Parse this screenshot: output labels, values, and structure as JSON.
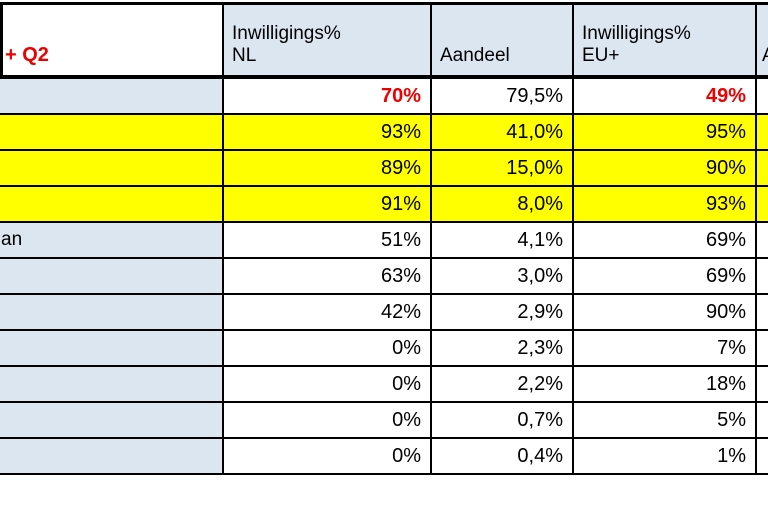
{
  "table": {
    "headers": {
      "period_fragment": "+ Q2",
      "col_nl_line1": "Inwilligings%",
      "col_nl_line2": "NL",
      "col_aandeel": "Aandeel",
      "col_eu_line1": "Inwilligings%",
      "col_eu_line2": "EU+",
      "col_partial_fragment": "A"
    },
    "rows": [
      {
        "label": "",
        "inwilligings_nl": "70%",
        "aandeel": "79,5%",
        "inwilligings_eu": "49%",
        "highlighted": false,
        "red_values": true
      },
      {
        "label": "",
        "inwilligings_nl": "93%",
        "aandeel": "41,0%",
        "inwilligings_eu": "95%",
        "highlighted": true,
        "red_values": false
      },
      {
        "label": "",
        "inwilligings_nl": "89%",
        "aandeel": "15,0%",
        "inwilligings_eu": "90%",
        "highlighted": true,
        "red_values": false
      },
      {
        "label": "",
        "inwilligings_nl": "91%",
        "aandeel": "8,0%",
        "inwilligings_eu": "93%",
        "highlighted": true,
        "red_values": false
      },
      {
        "label": "an",
        "inwilligings_nl": "51%",
        "aandeel": "4,1%",
        "inwilligings_eu": "69%",
        "highlighted": false,
        "red_values": false
      },
      {
        "label": "",
        "inwilligings_nl": "63%",
        "aandeel": "3,0%",
        "inwilligings_eu": "69%",
        "highlighted": false,
        "red_values": false
      },
      {
        "label": "",
        "inwilligings_nl": "42%",
        "aandeel": "2,9%",
        "inwilligings_eu": "90%",
        "highlighted": false,
        "red_values": false
      },
      {
        "label": "",
        "inwilligings_nl": "0%",
        "aandeel": "2,3%",
        "inwilligings_eu": "7%",
        "highlighted": false,
        "red_values": false
      },
      {
        "label": "",
        "inwilligings_nl": "0%",
        "aandeel": "2,2%",
        "inwilligings_eu": "18%",
        "highlighted": false,
        "red_values": false
      },
      {
        "label": "",
        "inwilligings_nl": "0%",
        "aandeel": "0,7%",
        "inwilligings_eu": "5%",
        "highlighted": false,
        "red_values": false
      },
      {
        "label": "",
        "inwilligings_nl": "0%",
        "aandeel": "0,4%",
        "inwilligings_eu": "1%",
        "highlighted": false,
        "red_values": false
      }
    ],
    "colors": {
      "header_fill": "#dce6f1",
      "label_fill": "#dce6f1",
      "cell_fill": "#ffffff",
      "highlight_fill": "#ffff00",
      "red_text": "#ee0000",
      "text": "#000000",
      "border": "#000000"
    }
  }
}
